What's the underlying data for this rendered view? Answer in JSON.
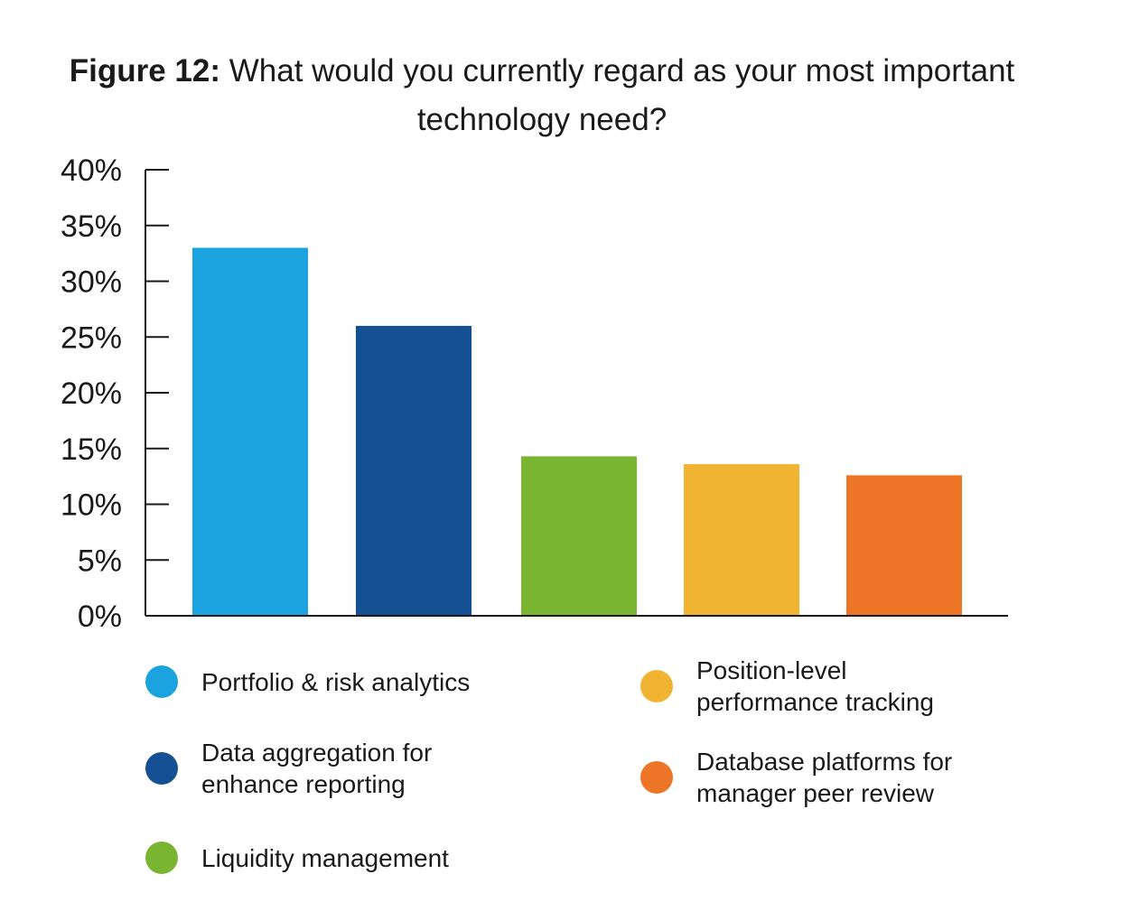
{
  "figure_label": "Figure 12:",
  "figure_title": "What would you currently regard as your most important technology need?",
  "chart_data": {
    "type": "bar",
    "categories": [
      "Portfolio & risk analytics",
      "Data aggregation for enhance reporting",
      "Liquidity management",
      "Position-level performance tracking",
      "Database platforms for manager peer review"
    ],
    "values": [
      33,
      26,
      14.3,
      13.6,
      12.6
    ],
    "colors": [
      "#1ba3e0",
      "#154f94",
      "#79b531",
      "#f1b432",
      "#ec7625"
    ],
    "ylim": [
      0,
      40
    ],
    "yticks": [
      "0%",
      "5%",
      "10%",
      "15%",
      "20%",
      "25%",
      "30%",
      "35%",
      "40%"
    ],
    "grid": false,
    "legend_position": "bottom"
  },
  "legend": [
    {
      "label": "Portfolio & risk analytics",
      "color": "#1ba3e0"
    },
    {
      "label": "Data aggregation for\nenhance reporting",
      "color": "#154f94"
    },
    {
      "label": "Liquidity management",
      "color": "#79b531"
    },
    {
      "label": "Position-level\nperformance tracking",
      "color": "#f1b432"
    },
    {
      "label": "Database platforms for\nmanager peer review",
      "color": "#ec7625"
    }
  ]
}
